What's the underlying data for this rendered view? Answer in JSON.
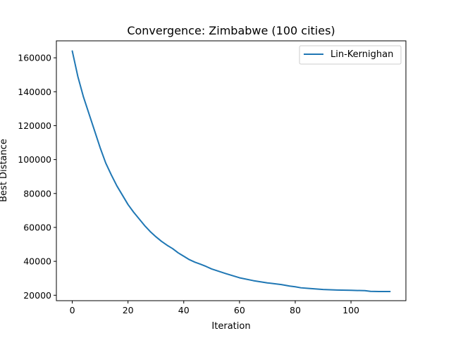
{
  "chart_data": {
    "type": "line",
    "title": "Convergence: Zimbabwe (100 cities)",
    "xlabel": "Iteration",
    "ylabel": "Best Distance",
    "xlim": [
      -5.7,
      119.7
    ],
    "ylim": [
      16800,
      170000
    ],
    "xticks": [
      0,
      20,
      40,
      60,
      80,
      100
    ],
    "yticks": [
      20000,
      40000,
      60000,
      80000,
      100000,
      120000,
      140000,
      160000
    ],
    "grid": false,
    "legend": "top-right",
    "series": [
      {
        "name": "Lin-Kernighan",
        "color": "#1f77b4",
        "x": [
          0,
          2,
          4,
          7,
          10,
          12,
          14,
          16,
          18,
          20,
          22,
          24,
          26,
          28,
          30,
          32,
          34,
          36,
          38,
          40,
          42,
          44,
          46,
          48,
          50,
          55,
          60,
          65,
          70,
          75,
          78,
          80,
          82,
          85,
          90,
          95,
          100,
          105,
          107,
          110,
          114
        ],
        "values": [
          164000,
          149000,
          137000,
          122000,
          107000,
          98000,
          91000,
          84500,
          79000,
          73500,
          69000,
          65000,
          61000,
          57500,
          54500,
          51800,
          49500,
          47500,
          45000,
          43000,
          41000,
          39500,
          38300,
          37000,
          35500,
          32800,
          30300,
          28600,
          27300,
          26300,
          25400,
          25000,
          24400,
          24000,
          23400,
          23100,
          22900,
          22700,
          22300,
          22200,
          22200
        ]
      }
    ]
  }
}
